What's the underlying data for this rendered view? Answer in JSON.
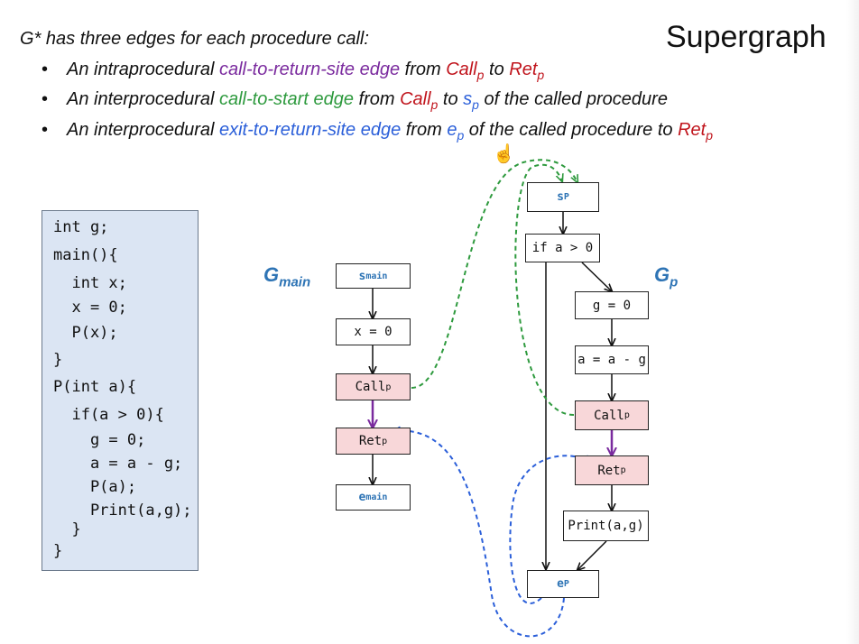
{
  "title": "Supergraph",
  "intro": "G* has three edges for each procedure call:",
  "bullets": [
    {
      "bullet_char": "•",
      "parts": [
        {
          "text": "An intraprocedural ",
          "color": "black"
        },
        {
          "text": "call-to-return-site edge",
          "color": "purple"
        },
        {
          "text": " from ",
          "color": "black"
        },
        {
          "text": "Call",
          "sub": "p",
          "color": "red"
        },
        {
          "text": " to ",
          "color": "black"
        },
        {
          "text": "Ret",
          "sub": "p",
          "color": "red"
        }
      ]
    },
    {
      "bullet_char": "•",
      "parts": [
        {
          "text": "An interprocedural ",
          "color": "black"
        },
        {
          "text": "call-to-start edge",
          "color": "green"
        },
        {
          "text": " from ",
          "color": "black"
        },
        {
          "text": "Call",
          "sub": "p",
          "color": "red"
        },
        {
          "text": " to ",
          "color": "black"
        },
        {
          "text": "s",
          "sub": "p",
          "color": "blue"
        },
        {
          "text": " of the called procedure",
          "color": "black"
        }
      ]
    },
    {
      "bullet_char": "•",
      "parts": [
        {
          "text": "An interprocedural ",
          "color": "black"
        },
        {
          "text": "exit-to-return-site edge",
          "color": "blue"
        },
        {
          "text": " from ",
          "color": "black"
        },
        {
          "text": "e",
          "sub": "p",
          "color": "blue"
        },
        {
          "text": " of the called procedure to ",
          "color": "black"
        },
        {
          "text": "Ret",
          "sub": "p",
          "color": "red"
        }
      ]
    }
  ],
  "code": [
    "int g;",
    "main(){",
    "  int x;",
    "  x = 0;",
    "  P(x);",
    "}",
    "P(int a){",
    "  if(a > 0){",
    "    g = 0;",
    "    a = a - g;",
    "    P(a);",
    "    Print(a,g);",
    "  }",
    "}"
  ],
  "graphs": {
    "main": {
      "label": "G",
      "sub": "main"
    },
    "p": {
      "label": "G",
      "sub": "p"
    }
  },
  "nodes": {
    "s_main": {
      "text": "s",
      "sub": "main"
    },
    "x_assign": {
      "text": "x = 0"
    },
    "call_main": {
      "text": "Call",
      "sub": "p"
    },
    "ret_main": {
      "text": "Ret",
      "sub": "p"
    },
    "e_main": {
      "text": "e",
      "sub": "main"
    },
    "s_p": {
      "text": "s",
      "sub": "P"
    },
    "if_cond": {
      "text": "if a > 0"
    },
    "g_assign": {
      "text": "g = 0"
    },
    "a_assign": {
      "text": "a = a - g"
    },
    "call_p": {
      "text": "Call",
      "sub": "p"
    },
    "ret_p": {
      "text": "Ret",
      "sub": "p"
    },
    "print_node": {
      "text": "Print(a,g)"
    },
    "e_p": {
      "text": "e",
      "sub": "P"
    }
  },
  "colors": {
    "black": "#111111",
    "purple": "#7a2a9e",
    "green": "#2e9a3e",
    "blue": "#2b5fd9",
    "red": "#c0141c",
    "call_node_fill": "#f8d7d9",
    "code_panel_bg": "#dbe5f3",
    "graph_label": "#2e74b5"
  },
  "icons": {
    "cursor": "hand-pointer-icon"
  }
}
